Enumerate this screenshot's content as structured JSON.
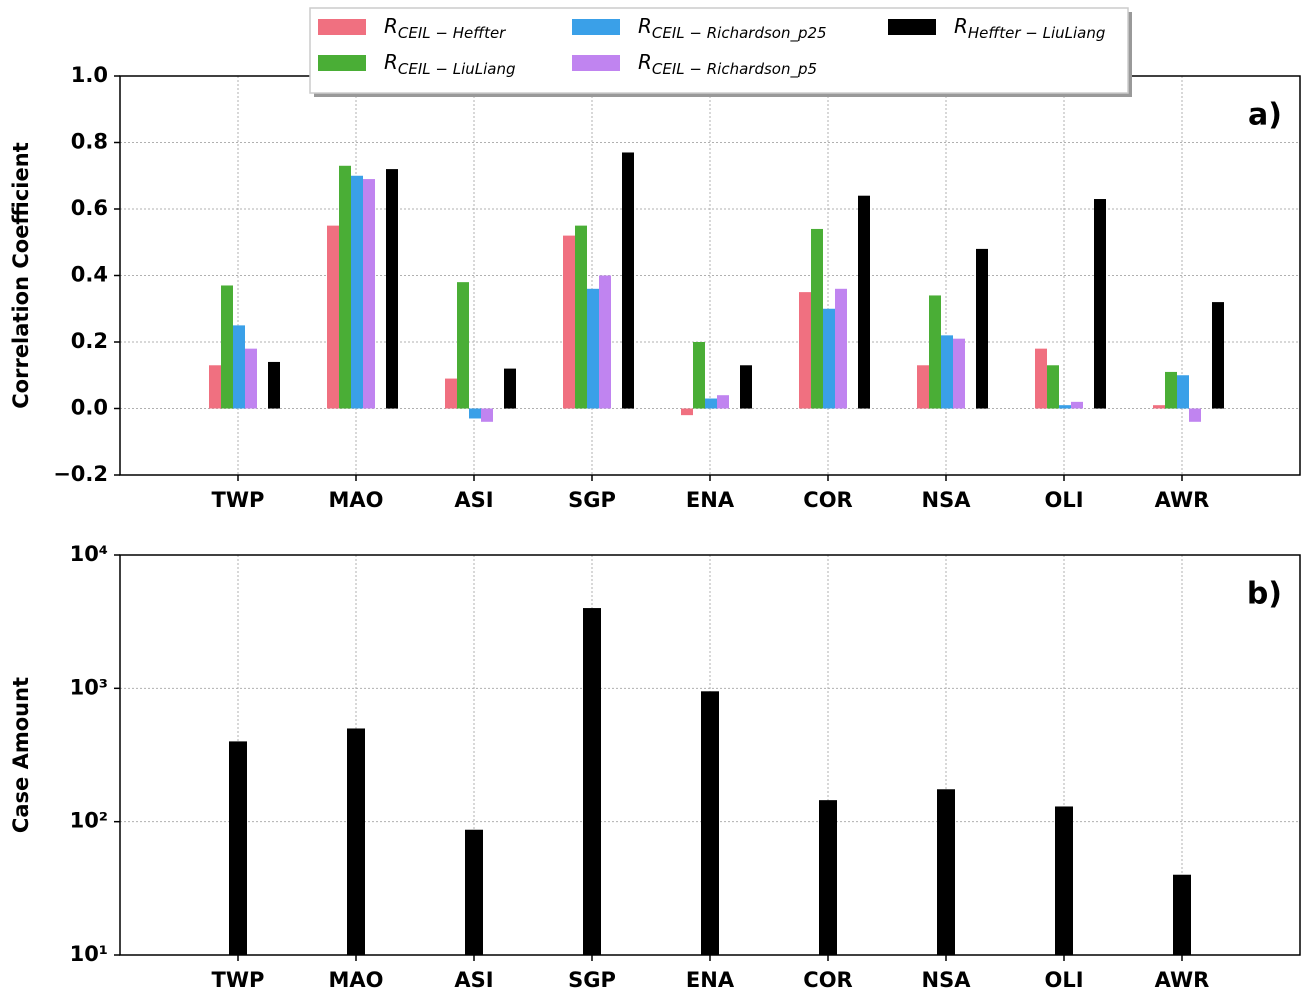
{
  "chart_data": [
    {
      "type": "bar",
      "annotation": "a)",
      "y_label": "Correlation Coefficient",
      "categories": [
        "TWP",
        "MAO",
        "ASI",
        "SGP",
        "ENA",
        "COR",
        "NSA",
        "OLI",
        "AWR"
      ],
      "series": [
        {
          "name": "RCEIL − Heffter",
          "color": "#f07080",
          "values": [
            0.13,
            0.55,
            0.09,
            0.52,
            -0.02,
            0.35,
            0.13,
            0.18,
            0.01
          ]
        },
        {
          "name": "RCEIL − LiuLiang",
          "color": "#4aae36",
          "values": [
            0.37,
            0.73,
            0.38,
            0.55,
            0.2,
            0.54,
            0.34,
            0.13,
            0.11
          ]
        },
        {
          "name": "RCEIL − Richardson_p25",
          "color": "#3aa0e8",
          "values": [
            0.25,
            0.7,
            -0.03,
            0.36,
            0.03,
            0.3,
            0.22,
            0.01,
            0.1
          ]
        },
        {
          "name": "RCEIL − Richardson_p5",
          "color": "#c084f0",
          "values": [
            0.18,
            0.69,
            -0.04,
            0.4,
            0.04,
            0.36,
            0.21,
            0.02,
            -0.04
          ]
        },
        {
          "name": "RHeffter − LiuLiang",
          "color": "#000000",
          "values": [
            0.14,
            0.72,
            0.12,
            0.77,
            0.13,
            0.64,
            0.48,
            0.63,
            0.32
          ]
        }
      ],
      "ylim": [
        -0.2,
        1.0
      ],
      "yticks": [
        {
          "value": -0.2,
          "label": "−0.2"
        },
        {
          "value": 0,
          "label": "0.0"
        },
        {
          "value": 0.2,
          "label": "0.2"
        },
        {
          "value": 0.4,
          "label": "0.4"
        },
        {
          "value": 0.6,
          "label": "0.6"
        },
        {
          "value": 0.8,
          "label": "0.8"
        },
        {
          "value": 1.0,
          "label": "1.0"
        }
      ],
      "grid": true,
      "legend": "upper center"
    },
    {
      "type": "bar",
      "annotation": "b)",
      "y_label": "Case Amount",
      "categories": [
        "TWP",
        "MAO",
        "ASI",
        "SGP",
        "ENA",
        "COR",
        "NSA",
        "OLI",
        "AWR"
      ],
      "values": [
        400,
        500,
        87,
        4000,
        950,
        145,
        175,
        130,
        40
      ],
      "color": "#000000",
      "log_scale": true,
      "ylim": [
        10,
        10000
      ],
      "yticks": [
        {
          "value": 10,
          "label": "10¹"
        },
        {
          "value": 100,
          "label": "10²"
        },
        {
          "value": 1000,
          "label": "10³"
        },
        {
          "value": 10000,
          "label": "10⁴"
        }
      ],
      "grid": true
    }
  ]
}
